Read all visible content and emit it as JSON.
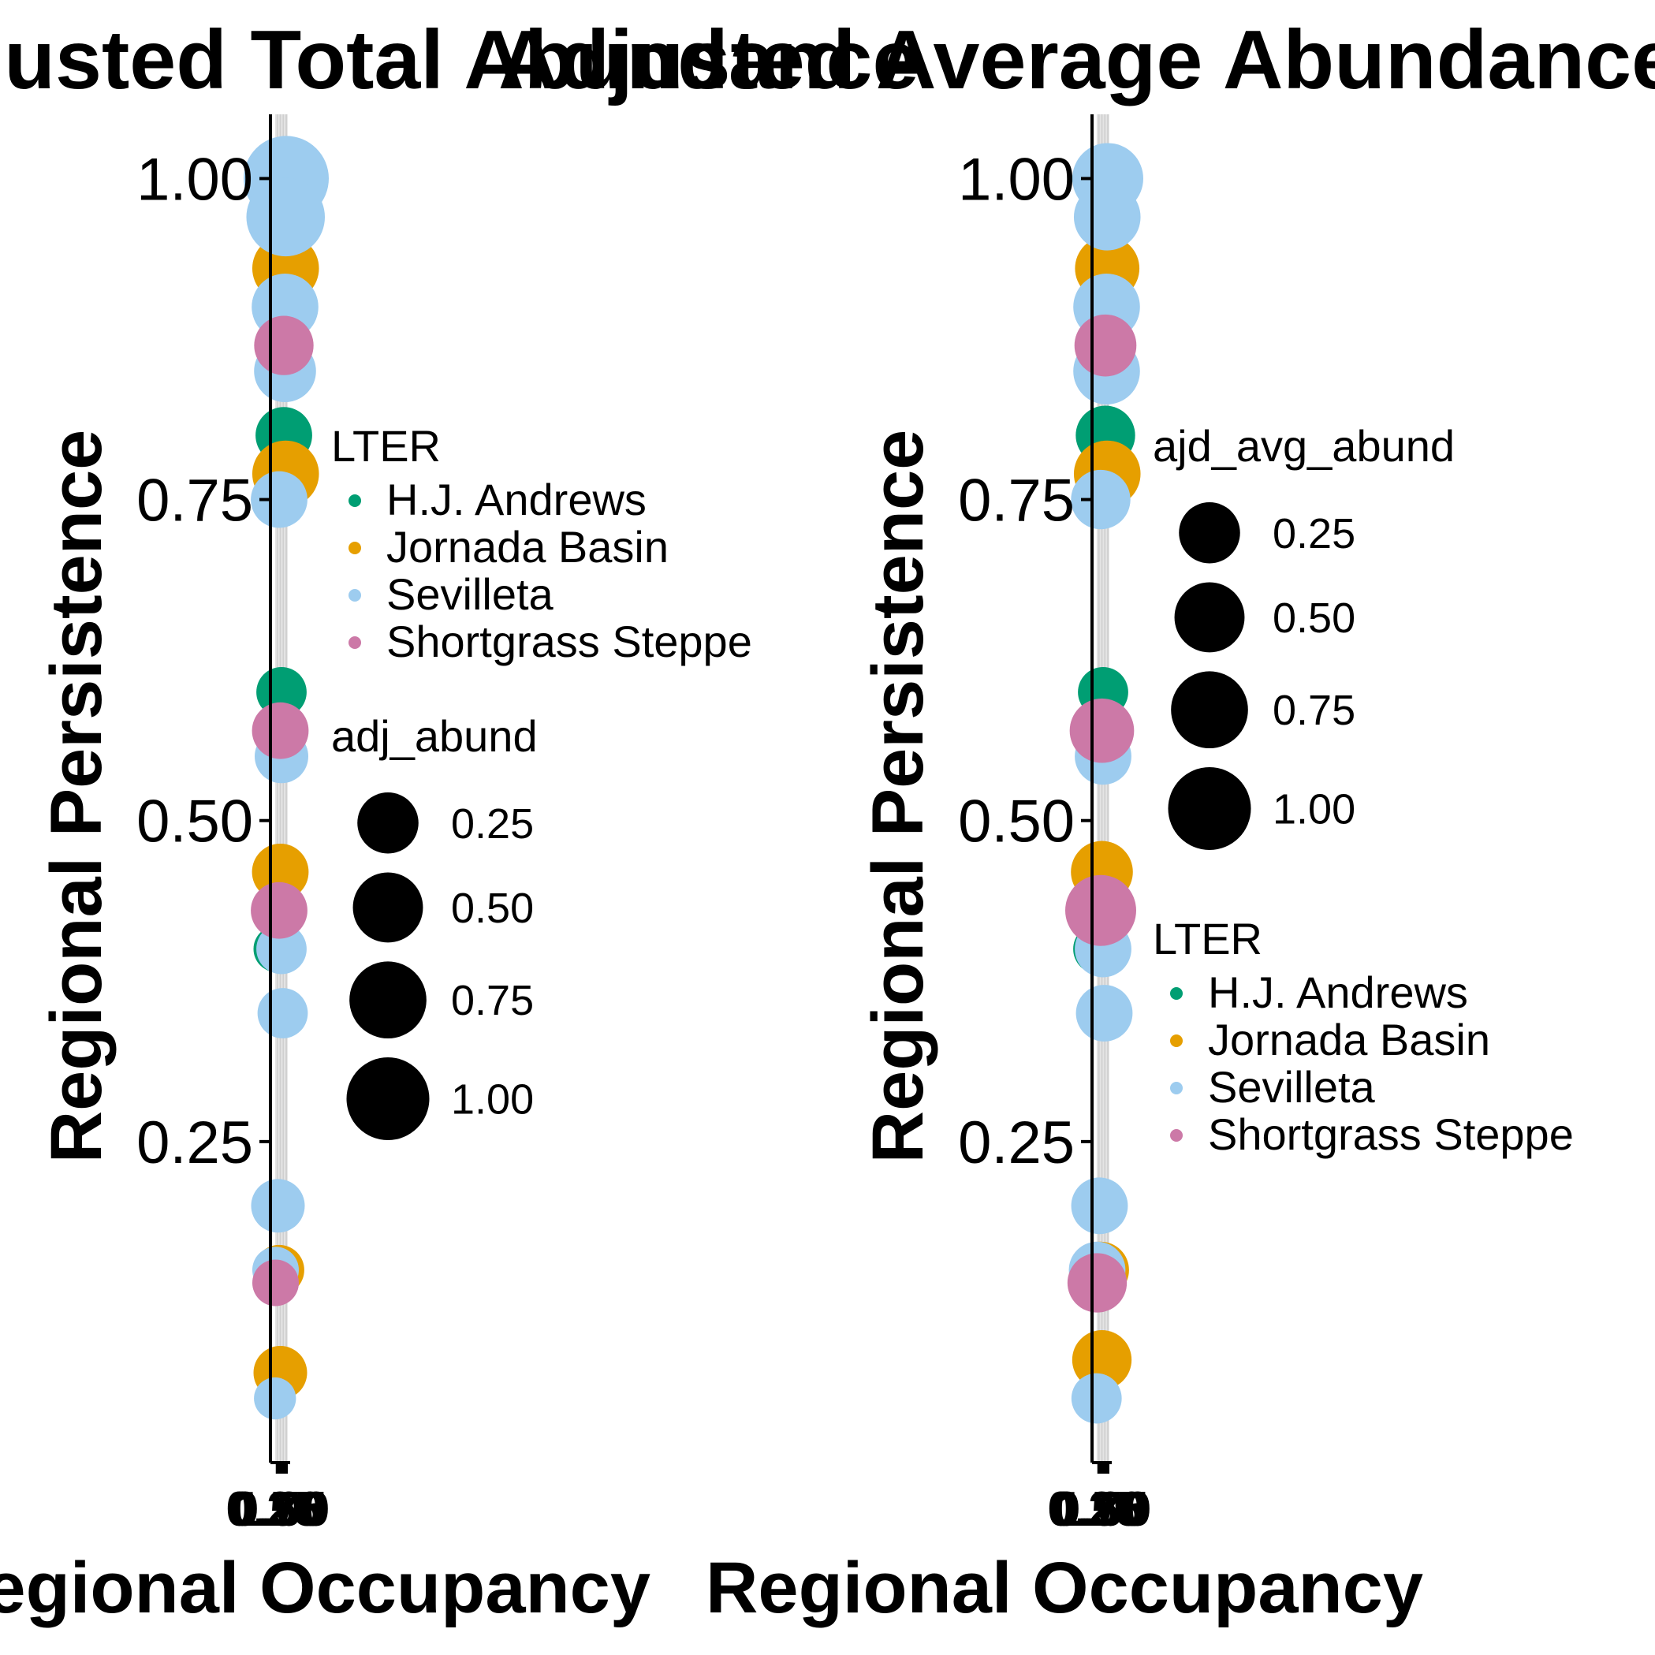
{
  "chart_data": [
    {
      "type": "scatter",
      "title": "Adjusted Total Abundance",
      "xlabel": "Regional Occupancy",
      "ylabel": "Regional Persistence",
      "x_tick_labels": [
        "0.25",
        "0.50",
        "0.75",
        "1.00"
      ],
      "y_tick_labels": [
        "0.25",
        "0.50",
        "0.75",
        "1.00"
      ],
      "ylim": [
        0,
        1.05
      ],
      "grid": "vertical major gridlines",
      "legend_placement": "right",
      "color_legend": {
        "title": "LTER",
        "entries": [
          {
            "name": "H.J. Andrews",
            "color": "#009E73"
          },
          {
            "name": "Jornada Basin",
            "color": "#E69F00"
          },
          {
            "name": "Sevilleta",
            "color": "#9DCCEF"
          },
          {
            "name": "Shortgrass Steppe",
            "color": "#CC79A7"
          }
        ]
      },
      "size_legend": {
        "title": "adj_abund",
        "values": [
          0.25,
          0.5,
          0.75,
          1.0
        ],
        "labels": [
          "0.25",
          "0.50",
          "0.75",
          "1.00"
        ]
      },
      "series": [
        {
          "name": "H.J. Andrews",
          "color": "#009E73",
          "points": [
            {
              "x": 0.4,
              "y": 1.0,
              "s": 0.2
            },
            {
              "x": 0.8,
              "y": 0.8,
              "s": 0.3
            },
            {
              "x": 0.6,
              "y": 0.6,
              "s": 0.2
            },
            {
              "x": 0.2,
              "y": 0.4,
              "s": 0.15
            }
          ]
        },
        {
          "name": "Jornada Basin",
          "color": "#E69F00",
          "points": [
            {
              "x": 0.95,
              "y": 0.93,
              "s": 0.5
            },
            {
              "x": 0.9,
              "y": 0.85,
              "s": 0.35
            },
            {
              "x": 0.95,
              "y": 0.77,
              "s": 0.5
            },
            {
              "x": 0.5,
              "y": 0.46,
              "s": 0.3
            },
            {
              "x": 0.4,
              "y": 0.15,
              "s": 0.2
            },
            {
              "x": 0.5,
              "y": 0.07,
              "s": 0.25
            }
          ]
        },
        {
          "name": "Sevilleta",
          "color": "#9DCCEF",
          "points": [
            {
              "x": 1.0,
              "y": 1.0,
              "s": 1.0
            },
            {
              "x": 0.95,
              "y": 0.97,
              "s": 0.8
            },
            {
              "x": 0.9,
              "y": 0.9,
              "s": 0.5
            },
            {
              "x": 0.9,
              "y": 0.85,
              "s": 0.4
            },
            {
              "x": 0.4,
              "y": 0.75,
              "s": 0.3
            },
            {
              "x": 0.6,
              "y": 0.55,
              "s": 0.25
            },
            {
              "x": 0.6,
              "y": 0.4,
              "s": 0.2
            },
            {
              "x": 0.7,
              "y": 0.35,
              "s": 0.2
            },
            {
              "x": 0.3,
              "y": 0.2,
              "s": 0.25
            },
            {
              "x": 0.1,
              "y": 0.15,
              "s": 0.15
            },
            {
              "x": 0.05,
              "y": 0.05,
              "s": 0.1
            }
          ]
        },
        {
          "name": "Shortgrass Steppe",
          "color": "#CC79A7",
          "points": [
            {
              "x": 0.8,
              "y": 0.87,
              "s": 0.35
            },
            {
              "x": 0.5,
              "y": 0.57,
              "s": 0.3
            },
            {
              "x": 0.4,
              "y": 0.43,
              "s": 0.3
            },
            {
              "x": 0.1,
              "y": 0.14,
              "s": 0.15
            }
          ]
        }
      ]
    },
    {
      "type": "scatter",
      "title": "Adjusted Average Abundance",
      "xlabel": "Regional Occupancy",
      "ylabel": "Regional Persistence",
      "x_tick_labels": [
        "0.25",
        "0.50",
        "0.75",
        "1.00"
      ],
      "y_tick_labels": [
        "0.25",
        "0.50",
        "0.75",
        "1.00"
      ],
      "ylim": [
        0,
        1.05
      ],
      "grid": "vertical major gridlines",
      "legend_placement": "right",
      "size_legend": {
        "title": "ajd_avg_abund",
        "values": [
          0.25,
          0.5,
          0.75,
          1.0
        ],
        "labels": [
          "0.25",
          "0.50",
          "0.75",
          "1.00"
        ]
      },
      "color_legend": {
        "title": "LTER",
        "entries": [
          {
            "name": "H.J. Andrews",
            "color": "#009E73"
          },
          {
            "name": "Jornada Basin",
            "color": "#E69F00"
          },
          {
            "name": "Sevilleta",
            "color": "#9DCCEF"
          },
          {
            "name": "Shortgrass Steppe",
            "color": "#CC79A7"
          }
        ]
      },
      "series": [
        {
          "name": "H.J. Andrews",
          "color": "#009E73",
          "points": [
            {
              "x": 0.4,
              "y": 1.0,
              "s": 0.3
            },
            {
              "x": 0.8,
              "y": 0.8,
              "s": 0.35
            },
            {
              "x": 0.6,
              "y": 0.6,
              "s": 0.2
            },
            {
              "x": 0.2,
              "y": 0.4,
              "s": 0.2
            }
          ]
        },
        {
          "name": "Jornada Basin",
          "color": "#E69F00",
          "points": [
            {
              "x": 0.95,
              "y": 0.93,
              "s": 0.45
            },
            {
              "x": 0.9,
              "y": 0.85,
              "s": 0.35
            },
            {
              "x": 0.95,
              "y": 0.77,
              "s": 0.5
            },
            {
              "x": 0.5,
              "y": 0.46,
              "s": 0.4
            },
            {
              "x": 0.4,
              "y": 0.15,
              "s": 0.3
            },
            {
              "x": 0.5,
              "y": 0.08,
              "s": 0.35
            }
          ]
        },
        {
          "name": "Sevilleta",
          "color": "#9DCCEF",
          "points": [
            {
              "x": 1.0,
              "y": 1.0,
              "s": 0.6
            },
            {
              "x": 0.95,
              "y": 0.97,
              "s": 0.5
            },
            {
              "x": 0.9,
              "y": 0.9,
              "s": 0.5
            },
            {
              "x": 0.9,
              "y": 0.85,
              "s": 0.5
            },
            {
              "x": 0.4,
              "y": 0.75,
              "s": 0.35
            },
            {
              "x": 0.6,
              "y": 0.55,
              "s": 0.3
            },
            {
              "x": 0.6,
              "y": 0.4,
              "s": 0.3
            },
            {
              "x": 0.7,
              "y": 0.35,
              "s": 0.3
            },
            {
              "x": 0.3,
              "y": 0.2,
              "s": 0.3
            },
            {
              "x": 0.1,
              "y": 0.15,
              "s": 0.3
            },
            {
              "x": 0.05,
              "y": 0.05,
              "s": 0.2
            }
          ]
        },
        {
          "name": "Shortgrass Steppe",
          "color": "#CC79A7",
          "points": [
            {
              "x": 0.8,
              "y": 0.87,
              "s": 0.4
            },
            {
              "x": 0.5,
              "y": 0.57,
              "s": 0.45
            },
            {
              "x": 0.4,
              "y": 0.43,
              "s": 0.6
            },
            {
              "x": 0.1,
              "y": 0.14,
              "s": 0.35
            }
          ]
        }
      ]
    }
  ]
}
